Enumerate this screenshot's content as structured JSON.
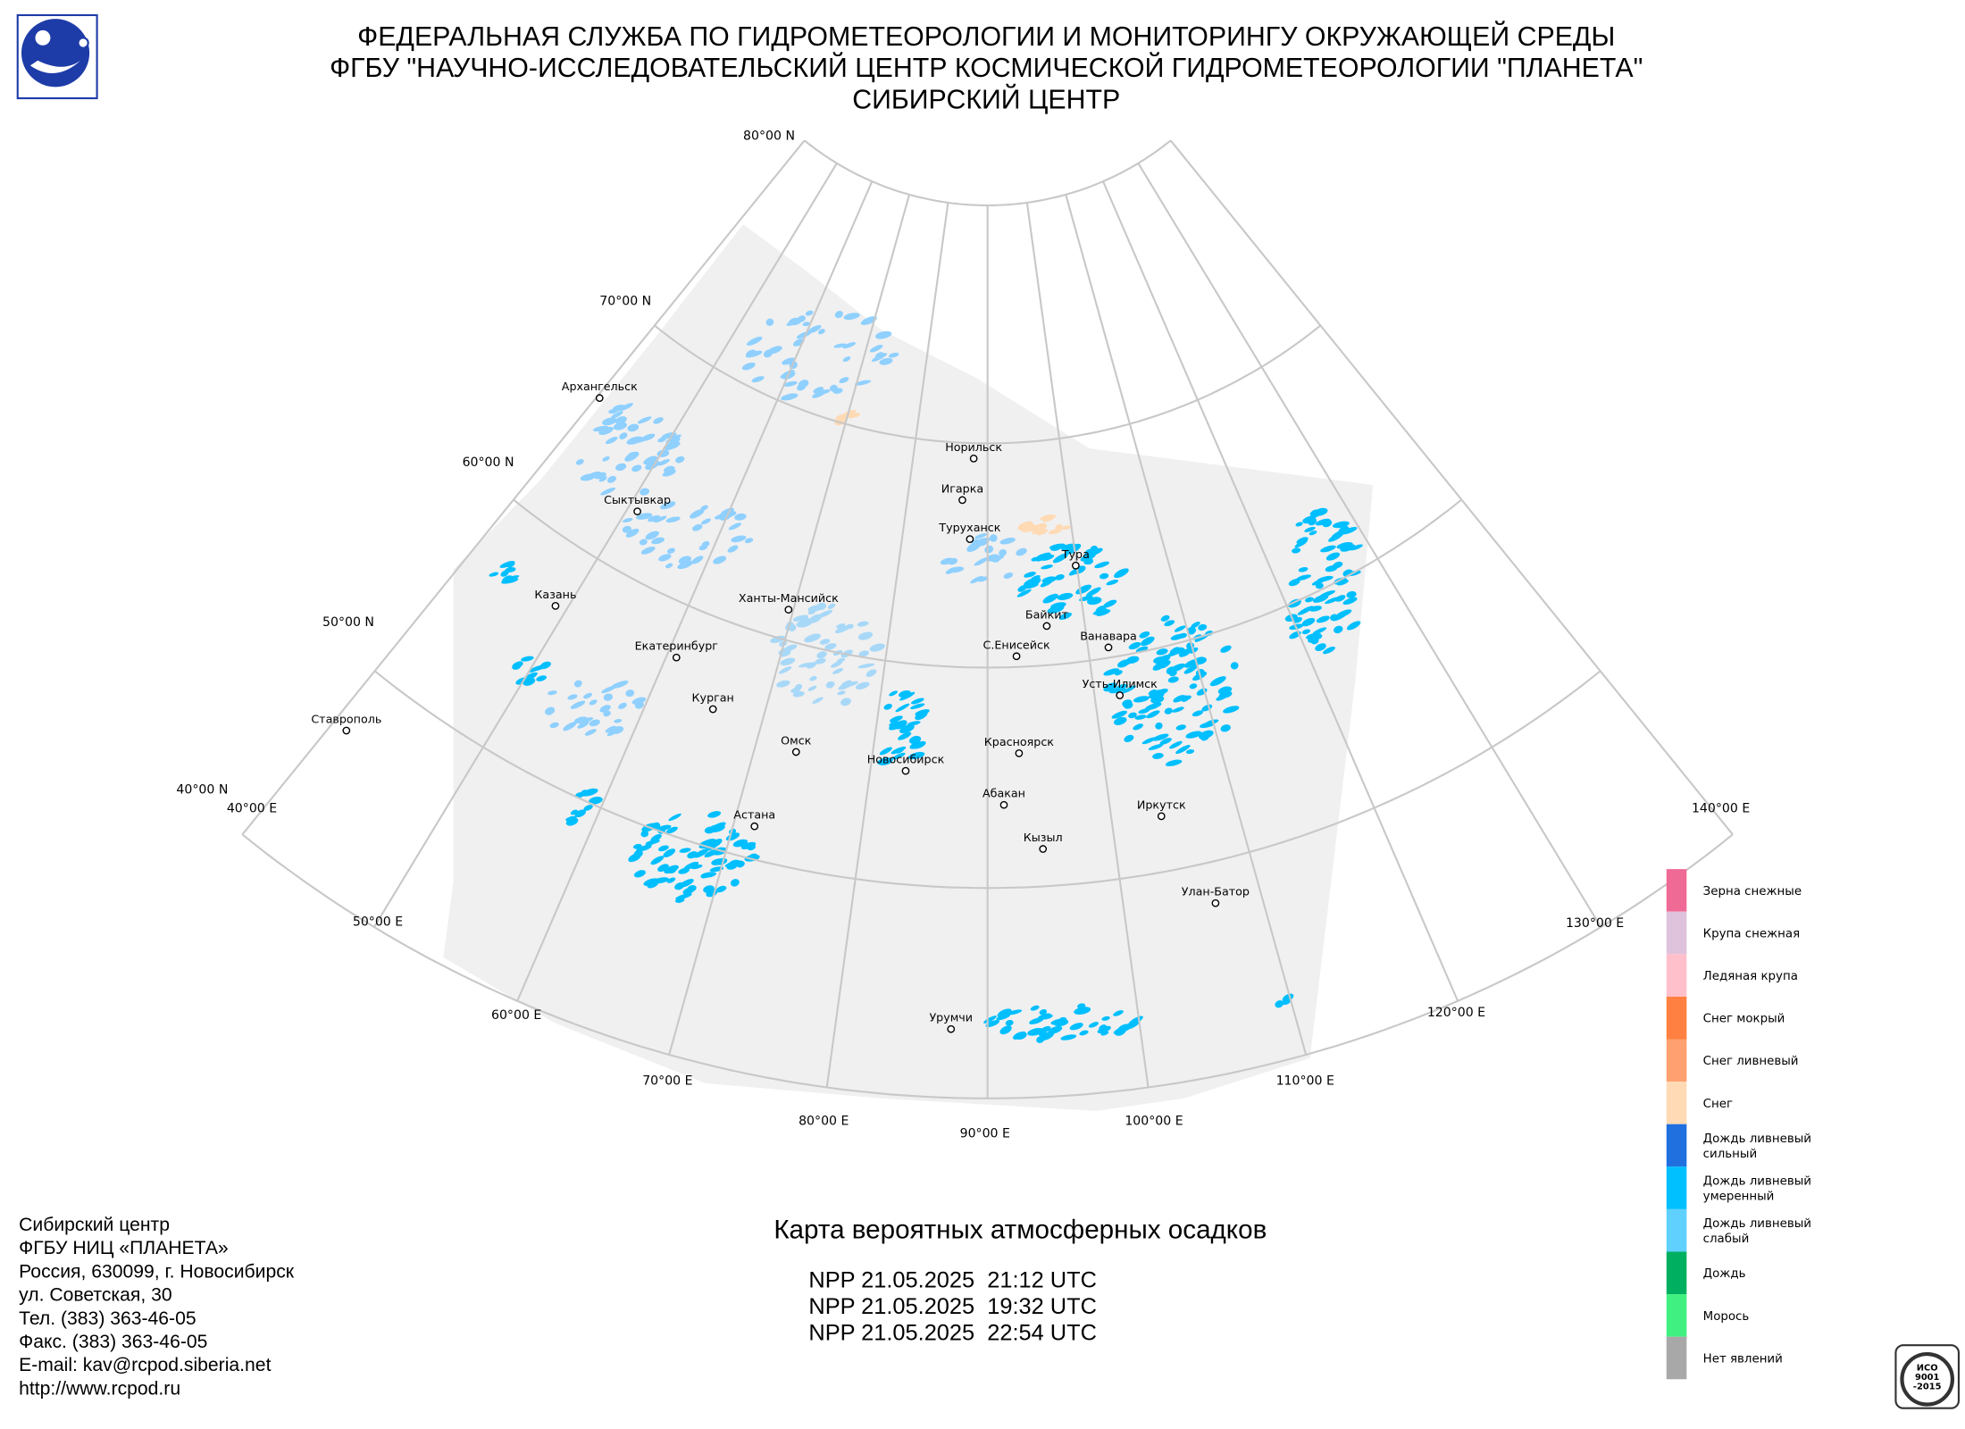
{
  "header": {
    "lines": [
      "ФЕДЕРАЛЬНАЯ СЛУЖБА ПО ГИДРОМЕТЕОРОЛОГИИ И МОНИТОРИНГУ ОКРУЖАЮЩЕЙ СРЕДЫ",
      "ФГБУ \"НАУЧНО-ИССЛЕДОВАТЕЛЬСКИЙ ЦЕНТР КОСМИЧЕСКОЙ ГИДРОМЕТЕОРОЛОГИИ \"ПЛАНЕТА\"",
      "СИБИРСКИЙ ЦЕНТР"
    ]
  },
  "map": {
    "latitude_labels": [
      "80°00 N",
      "70°00 N",
      "60°00 N",
      "50°00 N",
      "40°00 N"
    ],
    "longitude_labels": [
      "40°00 E",
      "50°00 E",
      "60°00 E",
      "70°00 E",
      "80°00 E",
      "90°00 E",
      "100°00 E",
      "110°00 E",
      "120°00 E",
      "130°00 E",
      "140°00 E"
    ],
    "cities": [
      "Архангельск",
      "Сыктывкар",
      "Казань",
      "Екатеринбург",
      "Ханты-Мансийск",
      "Курган",
      "Омск",
      "Ставрополь",
      "Астана",
      "Новосибирск",
      "Норильск",
      "Игарка",
      "Туруханск",
      "Тура",
      "Байкит",
      "Ванавара",
      "С.Енисейск",
      "Усть-Илимск",
      "Красноярск",
      "Абакан",
      "Иркутск",
      "Кызыл",
      "Улан-Батор",
      "Урумчи"
    ],
    "legend": [
      {
        "label": [
          "Зерна снежные"
        ],
        "color": "#f06a96"
      },
      {
        "label": [
          "Крупа снежная"
        ],
        "color": "#dfc2dc"
      },
      {
        "label": [
          "Ледяная крупа"
        ],
        "color": "#ffc0cc"
      },
      {
        "label": [
          "Снег мокрый"
        ],
        "color": "#ff8040"
      },
      {
        "label": [
          "Снег ливневый"
        ],
        "color": "#ffa070"
      },
      {
        "label": [
          "Снег"
        ],
        "color": "#ffdab4"
      },
      {
        "label": [
          "Дождь ливневый",
          "сильный"
        ],
        "color": "#2070e0"
      },
      {
        "label": [
          "Дождь ливневый",
          "умеренный"
        ],
        "color": "#00c0ff"
      },
      {
        "label": [
          "Дождь ливневый",
          "слабый"
        ],
        "color": "#60d0ff"
      },
      {
        "label": [
          "Дождь"
        ],
        "color": "#00b060"
      },
      {
        "label": [
          "Морось"
        ],
        "color": "#40f080"
      },
      {
        "label": [
          "Нет явлений"
        ],
        "color": "#a8a8a8"
      }
    ]
  },
  "title": "Карта вероятных атмосферных осадков",
  "passes": [
    "NPP 21.05.2025  21:12 UTC",
    "NPP 21.05.2025  19:32 UTC",
    "NPP 21.05.2025  22:54 UTC"
  ],
  "contacts": [
    "Сибирский центр",
    "ФГБУ НИЦ «ПЛАНЕТА»",
    "Россия, 630099, г. Новосибирск",
    "ул. Советская, 30",
    "Тел. (383) 363-46-05",
    "Факс. (383) 363-46-05",
    "E-mail: kav@rcpod.siberia.net",
    "http://www.rcpod.ru"
  ],
  "iso_logo": [
    "ИСО",
    "9001",
    "-2015"
  ]
}
